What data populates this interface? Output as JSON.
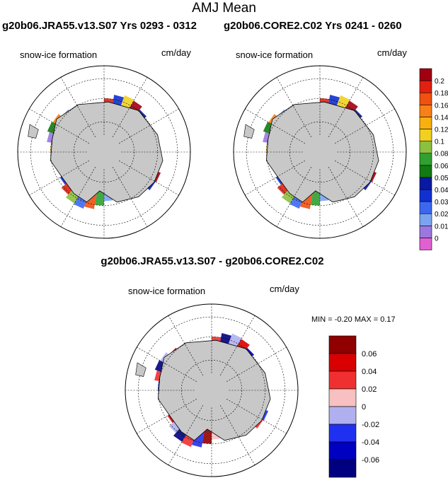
{
  "title": "AMJ Mean",
  "panels": [
    {
      "title": "g20b06.JRA55.v13.S07  Yrs 0293 - 0312",
      "field": "snow-ice formation",
      "units": "cm/day"
    },
    {
      "title": "g20b06.CORE2.C02  Yrs 0241 - 0260",
      "field": "snow-ice formation",
      "units": "cm/day"
    },
    {
      "title": "g20b06.JRA55.v13.S07 - g20b06.CORE2.C02",
      "field": "snow-ice formation",
      "units": "cm/day",
      "stats": "MIN =  -0.20 MAX =   0.17"
    }
  ],
  "chart_data": [
    {
      "type": "heatmap",
      "projection": "south polar stereographic",
      "colorbar": {
        "labels": [
          "0",
          "0.01",
          "0.02",
          "0.03",
          "0.04",
          "0.05",
          "0.06",
          "0.08",
          "0.1",
          "0.12",
          "0.14",
          "0.16",
          "0.18",
          "0.2"
        ],
        "colors": [
          "#e060d0",
          "#9a78e0",
          "#7aa4f0",
          "#3c68f0",
          "#1030d0",
          "#0a1aa0",
          "#127a12",
          "#30a030",
          "#8cc040",
          "#f0d020",
          "#f8b010",
          "#f88018",
          "#f05010",
          "#e02010",
          "#a00010"
        ]
      },
      "panels": [
        "g20b06.JRA55.v13.S07  Yrs 0293 - 0312",
        "g20b06.CORE2.C02  Yrs 0241 - 0260"
      ]
    },
    {
      "type": "heatmap",
      "projection": "south polar stereographic",
      "colorbar": {
        "labels": [
          "0.06",
          "0.04",
          "0.02",
          "0",
          "-0.02",
          "-0.04",
          "-0.06"
        ],
        "colors": [
          "#900000",
          "#d80000",
          "#f03030",
          "#f8c0c0",
          "#b0b0f0",
          "#2030f0",
          "#0000c0",
          "#000080"
        ]
      }
    }
  ]
}
